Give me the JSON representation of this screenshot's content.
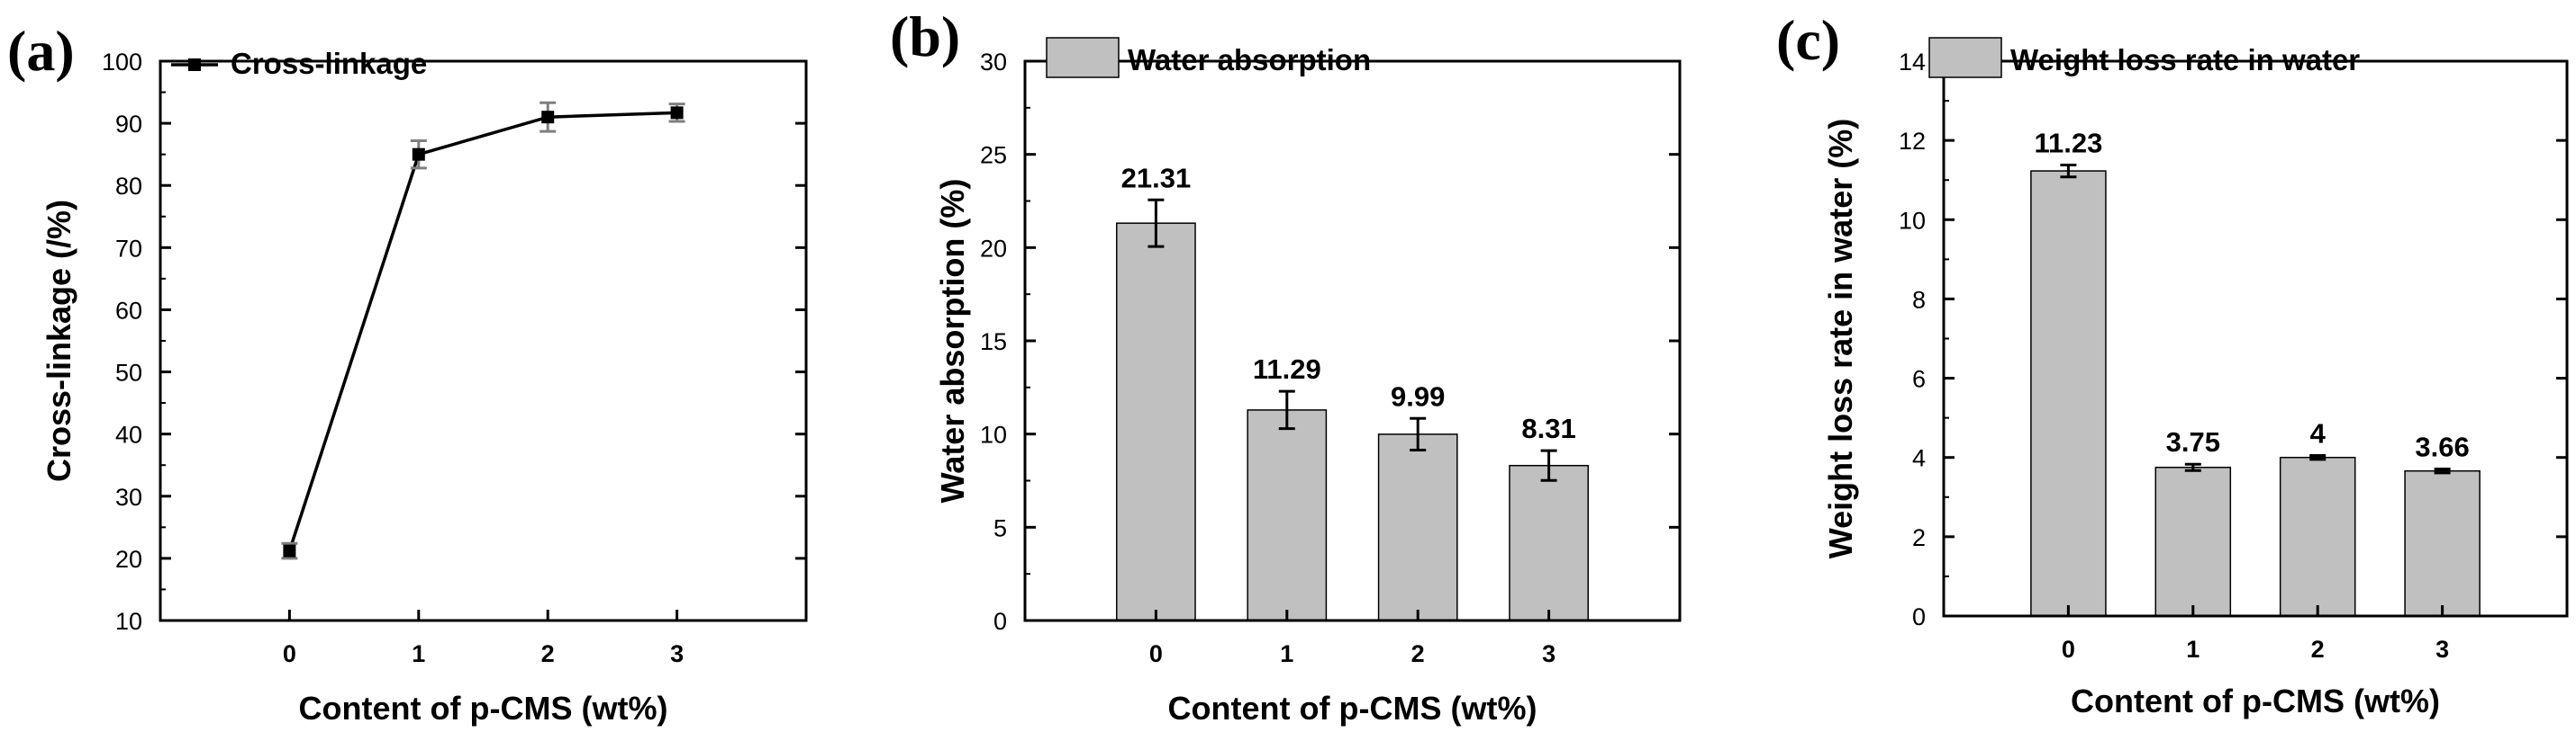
{
  "chart_data": [
    {
      "panel": "(a)",
      "type": "line",
      "x": [
        0,
        1,
        2,
        3
      ],
      "x_tick_labels": [
        "0",
        "1",
        "2",
        "3"
      ],
      "values": [
        21.2,
        85.0,
        91.0,
        91.7
      ],
      "errors": [
        1.2,
        2.2,
        2.3,
        1.4
      ],
      "series_name": "Cross-linkage",
      "xlabel": "Content of p-CMS (wt%)",
      "ylabel": "Cross-linkage (/%)",
      "ylim": [
        10,
        100
      ],
      "yticks": [
        10,
        20,
        30,
        40,
        50,
        60,
        70,
        80,
        90,
        100
      ],
      "legend": "top-left",
      "colors": {
        "line": "#000000",
        "marker": "#000000",
        "errorbar": "#7f7f7f"
      }
    },
    {
      "panel": "(b)",
      "type": "bar",
      "categories": [
        "0",
        "1",
        "2",
        "3"
      ],
      "values": [
        21.31,
        11.29,
        9.99,
        8.31
      ],
      "value_labels": [
        "21.31",
        "11.29",
        "9.99",
        "8.31"
      ],
      "errors": [
        1.25,
        1.0,
        0.85,
        0.8
      ],
      "series_name": "Water absorption",
      "xlabel": "Content of p-CMS (wt%)",
      "ylabel": "Water absorption (%)",
      "ylim": [
        0,
        30
      ],
      "yticks": [
        0,
        5,
        10,
        15,
        20,
        25,
        30
      ],
      "legend": "top-left",
      "colors": {
        "bar": "#c0c0c0",
        "edge": "#000000"
      }
    },
    {
      "panel": "(c)",
      "type": "bar",
      "categories": [
        "0",
        "1",
        "2",
        "3"
      ],
      "values": [
        11.23,
        3.75,
        4.0,
        3.66
      ],
      "value_labels": [
        "11.23",
        "3.75",
        "4",
        "3.66"
      ],
      "errors": [
        0.15,
        0.08,
        0.05,
        0.05
      ],
      "series_name": "Weight loss rate in water",
      "xlabel": "Content of p-CMS (wt%)",
      "ylabel": "Weight loss rate in water (%)",
      "ylim": [
        0,
        14
      ],
      "yticks": [
        0,
        2,
        4,
        6,
        8,
        10,
        12,
        14
      ],
      "legend": "top-left",
      "colors": {
        "bar": "#c0c0c0",
        "edge": "#000000"
      }
    }
  ]
}
